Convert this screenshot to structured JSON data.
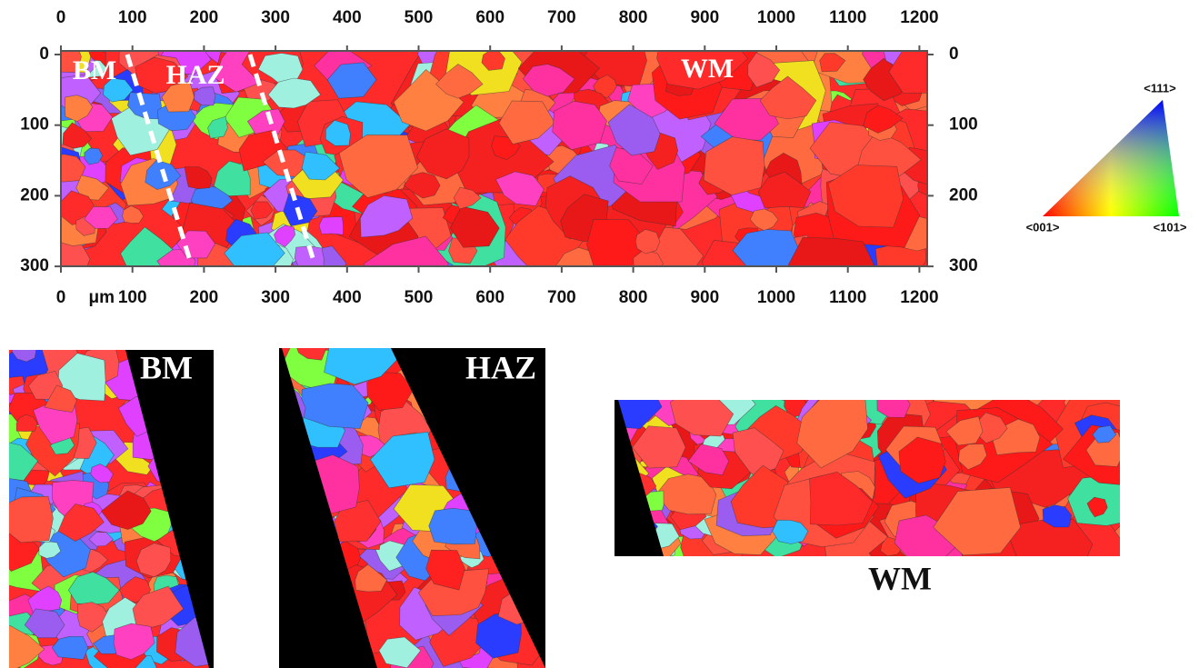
{
  "map": {
    "x_ticks_top": [
      0,
      100,
      200,
      300,
      400,
      500,
      600,
      700,
      800,
      900,
      1000,
      1100,
      1200
    ],
    "x_ticks_bottom": [
      0,
      100,
      200,
      300,
      400,
      500,
      600,
      700,
      800,
      900,
      1000,
      1100,
      1200
    ],
    "unit": "μm",
    "y_ticks_left": [
      0,
      100,
      200,
      300
    ],
    "y_ticks_right": [
      0,
      100,
      200,
      300
    ],
    "region_labels": [
      "BM",
      "HAZ",
      "WM"
    ]
  },
  "legend": {
    "top": "<111>",
    "left": "<001>",
    "right": "<101>"
  },
  "panels": [
    {
      "label": "BM"
    },
    {
      "label": "HAZ"
    },
    {
      "label": "WM"
    }
  ]
}
